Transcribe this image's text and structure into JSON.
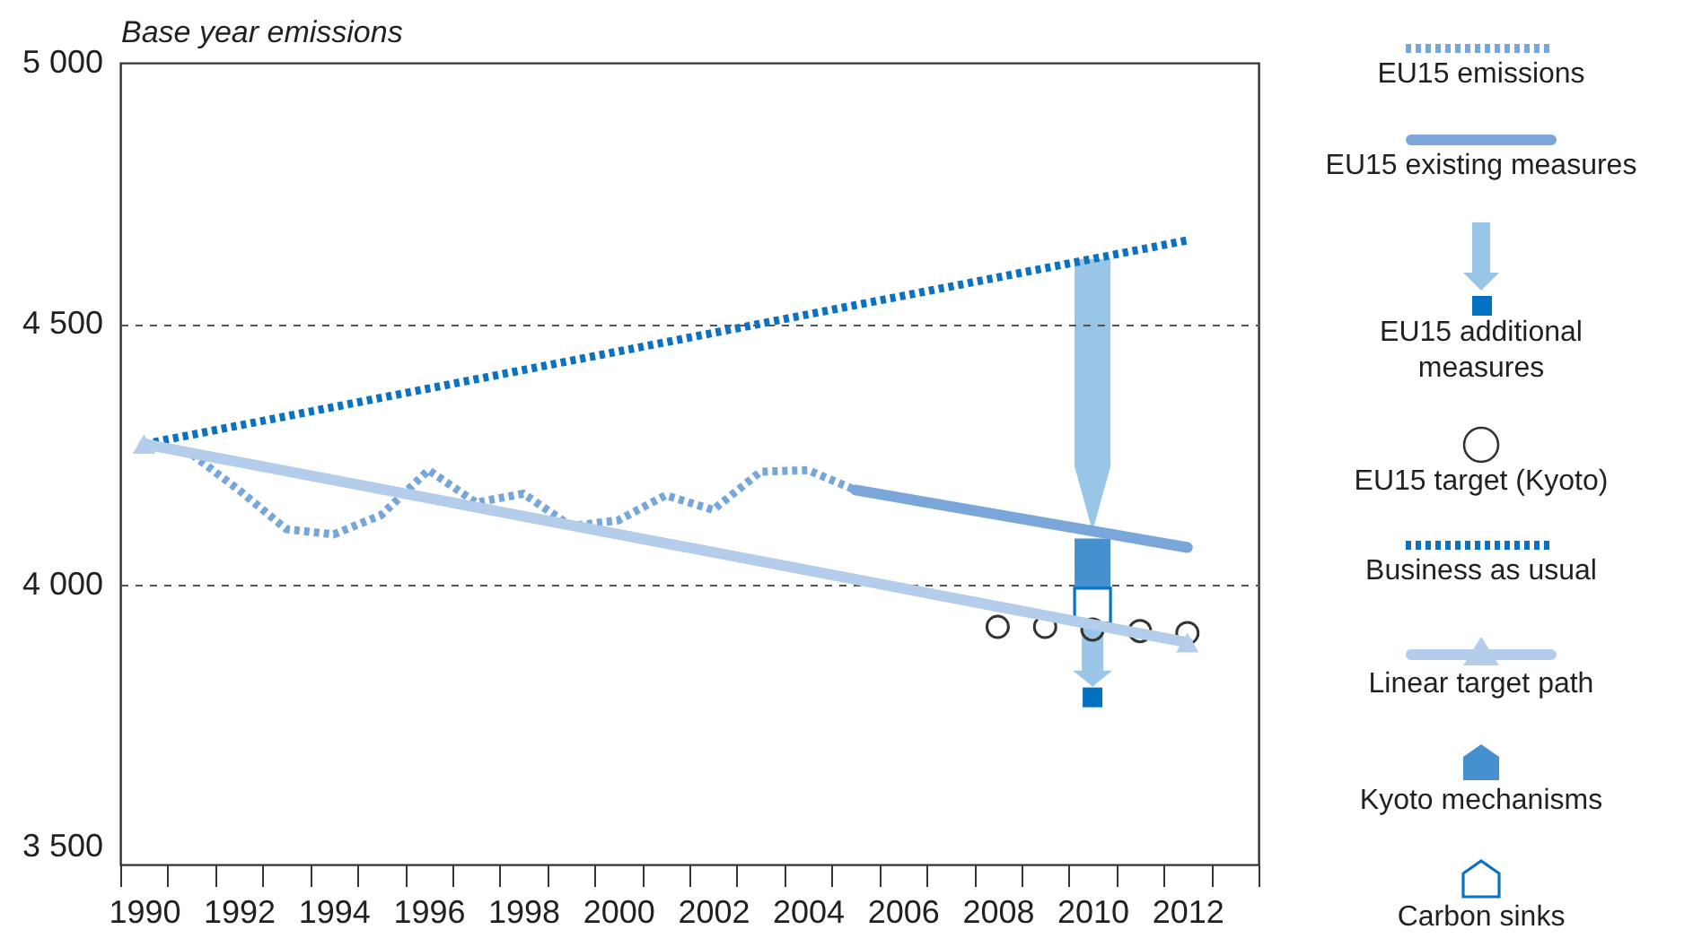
{
  "chart_data": {
    "type": "line",
    "ylabel": "Base year emissions",
    "xlim": [
      1989.5,
      2013.5
    ],
    "xticks": [
      1990,
      1992,
      1994,
      1996,
      1998,
      2000,
      2002,
      2004,
      2006,
      2008,
      2010,
      2012,
      {
        "value": 1989.5,
        "label": null
      },
      {
        "value": 1990.5,
        "label": null
      },
      {
        "value": 1991.5,
        "label": null
      },
      {
        "value": 1992.5,
        "label": null
      },
      {
        "value": 1993.5,
        "label": null
      },
      {
        "value": 1994.5,
        "label": null
      },
      {
        "value": 1995.5,
        "label": null
      },
      {
        "value": 1996.5,
        "label": null
      },
      {
        "value": 1997.5,
        "label": null
      },
      {
        "value": 1998.5,
        "label": null
      },
      {
        "value": 1999.5,
        "label": null
      },
      {
        "value": 2000.5,
        "label": null
      },
      {
        "value": 2001.5,
        "label": null
      },
      {
        "value": 2002.5,
        "label": null
      },
      {
        "value": 2003.5,
        "label": null
      },
      {
        "value": 2004.5,
        "label": null
      },
      {
        "value": 2005.5,
        "label": null
      },
      {
        "value": 2006.5,
        "label": null
      },
      {
        "value": 2007.5,
        "label": null
      },
      {
        "value": 2008.5,
        "label": null
      },
      {
        "value": 2009.5,
        "label": null
      },
      {
        "value": 2010.5,
        "label": null
      },
      {
        "value": 2011.5,
        "label": null
      },
      {
        "value": 2012.5,
        "label": null
      },
      {
        "value": 2013.5,
        "label": null
      }
    ],
    "ylim": [
      3465,
      5000
    ],
    "yticks": [
      {
        "value": 3500,
        "label": "3 500"
      },
      {
        "value": 4000,
        "label": "4 000"
      },
      {
        "value": 4500,
        "label": "4 500"
      },
      {
        "value": 5000,
        "label": "5 000"
      }
    ],
    "grid": "y",
    "legend": "right",
    "series": [
      {
        "name": "EU15 emissions",
        "line_style": "dotted",
        "color": "#77a7da",
        "x": [
          1990,
          1991,
          1992,
          1993,
          1994,
          1995,
          1996,
          1997,
          1998,
          1999,
          2000,
          2001,
          2002,
          2003,
          2004,
          2005
        ],
        "values": [
          4271,
          4251,
          4182,
          4107,
          4097,
          4134,
          4220,
          4158,
          4175,
          4113,
          4124,
          4172,
          4144,
          4217,
          4220,
          4182
        ]
      },
      {
        "name": "EU15 existing measures",
        "line_style": "solid",
        "color": "#7aa6da",
        "x": [
          2005,
          2012
        ],
        "values": [
          4182,
          4072
        ]
      },
      {
        "name": "EU15 additional measures",
        "type": "scatter",
        "marker": "square",
        "color": "#0070c0",
        "x": [
          2010
        ],
        "values": [
          3785
        ]
      },
      {
        "name": "EU15 target (Kyoto)",
        "type": "scatter",
        "marker": "circle",
        "color": "#333333",
        "x": [
          2008,
          2009,
          2010,
          2011,
          2012
        ],
        "values": [
          3920,
          3920,
          3915,
          3912,
          3908
        ]
      },
      {
        "name": "Business as usual",
        "line_style": "dotted",
        "color": "#0a72c0",
        "x": [
          1990,
          2012
        ],
        "values": [
          4270,
          4660
        ]
      },
      {
        "name": "Linear target path",
        "line_style": "solid",
        "marker": "triangle",
        "color": "#b4cdeb",
        "x": [
          1990,
          2012
        ],
        "values": [
          4270,
          3890
        ]
      },
      {
        "name": "Kyoto mechanisms",
        "type": "bar",
        "color": "#4591cf",
        "x": [
          2010
        ],
        "base": [
          3986
        ],
        "values": [
          103
        ]
      },
      {
        "name": "Carbon sinks",
        "type": "bar",
        "color": "#0a72c0",
        "x": [
          2010
        ],
        "base": [
          3927
        ],
        "values": [
          67
        ]
      }
    ]
  }
}
